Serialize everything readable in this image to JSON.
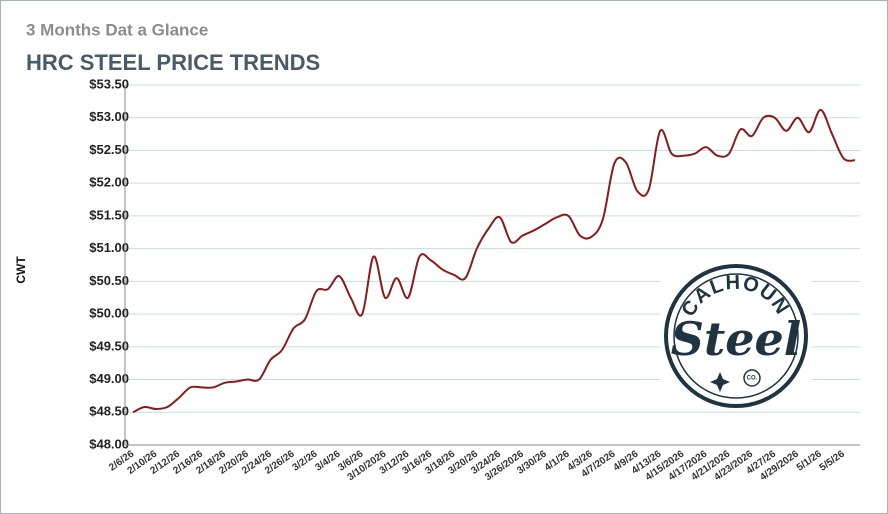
{
  "chart_data": {
    "type": "line",
    "subtitle": "3 Months Dat a Glance",
    "title": "HRC STEEL PRICE TRENDS",
    "y_label": "CWT",
    "logo": {
      "top": "CALHOUN",
      "main": "Steel",
      "small": "CO."
    },
    "categories": [
      "2/6/26",
      null,
      "2/10/26",
      null,
      "2/12/26",
      null,
      "2/16/26",
      null,
      "2/18/26",
      null,
      "2/20/26",
      null,
      "2/24/26",
      null,
      "2/26/26",
      null,
      "3/2/26",
      null,
      "3/4/26",
      null,
      "3/6/26",
      null,
      "3/10/2026",
      null,
      "3/12/26",
      null,
      "3/16/26",
      null,
      "3/18/26",
      null,
      "3/20/26",
      null,
      "3/24/26",
      null,
      "3/26/2026",
      null,
      "3/30/26",
      null,
      "4/1/26",
      null,
      "4/3/26",
      null,
      "4/7/2026",
      null,
      "4/9/26",
      null,
      "4/13/26",
      null,
      "4/15/2026",
      null,
      "4/17/2026",
      null,
      "4/21/2026",
      null,
      "4/23/2026",
      null,
      "4/27/26",
      null,
      "4/29/2026",
      null,
      "5/1/26",
      null,
      "5/5/26",
      null
    ],
    "series": [
      {
        "name": "HRC",
        "color": "#8b1a1a",
        "values": [
          48.5,
          48.58,
          48.55,
          48.58,
          48.72,
          48.88,
          48.88,
          48.88,
          48.95,
          48.97,
          49.0,
          49.0,
          49.3,
          49.45,
          49.78,
          49.92,
          50.35,
          50.38,
          50.58,
          50.25,
          50.0,
          50.88,
          50.25,
          50.55,
          50.25,
          50.88,
          50.82,
          50.68,
          50.6,
          50.55,
          51.0,
          51.3,
          51.48,
          51.1,
          51.2,
          51.28,
          51.38,
          51.48,
          51.5,
          51.2,
          51.18,
          51.45,
          52.3,
          52.32,
          51.88,
          51.9,
          52.8,
          52.45,
          52.42,
          52.45,
          52.55,
          52.42,
          52.45,
          52.82,
          52.72,
          53.0,
          53.0,
          52.8,
          53.0,
          52.78,
          53.12,
          52.75,
          52.38,
          52.35
        ]
      }
    ],
    "ylim": [
      48,
      53.5
    ],
    "yticks": [
      {
        "value": 48,
        "label": "$48.00"
      },
      {
        "value": 48.5,
        "label": "$48.50"
      },
      {
        "value": 49,
        "label": "$49.00"
      },
      {
        "value": 49.5,
        "label": "$49.50"
      },
      {
        "value": 50,
        "label": "$50.00"
      },
      {
        "value": 50.5,
        "label": "$50.50"
      },
      {
        "value": 51,
        "label": "$51.00"
      },
      {
        "value": 51.5,
        "label": "$51.50"
      },
      {
        "value": 52,
        "label": "$52.00"
      },
      {
        "value": 52.5,
        "label": "$52.50"
      },
      {
        "value": 53,
        "label": "$53.00"
      },
      {
        "value": 53.5,
        "label": "$53.50"
      }
    ],
    "grid": true
  }
}
